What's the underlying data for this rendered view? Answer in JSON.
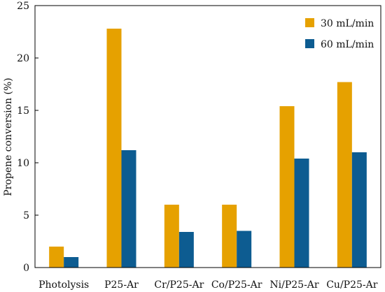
{
  "chart_data": {
    "type": "bar",
    "title": "",
    "xlabel": "",
    "ylabel": "Propene conversion (%)",
    "ylim": [
      0,
      25
    ],
    "yticks": [
      0,
      5,
      10,
      15,
      20,
      25
    ],
    "grid": false,
    "legend_position": "top-right",
    "categories": [
      "Photolysis",
      "P25-Ar",
      "Cr/P25-Ar",
      "Co/P25-Ar",
      "Ni/P25-Ar",
      "Cu/P25-Ar"
    ],
    "series": [
      {
        "name": "30 mL/min",
        "color": "#E6A100",
        "values": [
          2.0,
          22.8,
          6.0,
          6.0,
          15.4,
          17.7
        ]
      },
      {
        "name": "60 mL/min",
        "color": "#0D5C91",
        "values": [
          1.0,
          11.2,
          3.4,
          3.5,
          10.4,
          11.0
        ]
      }
    ]
  }
}
